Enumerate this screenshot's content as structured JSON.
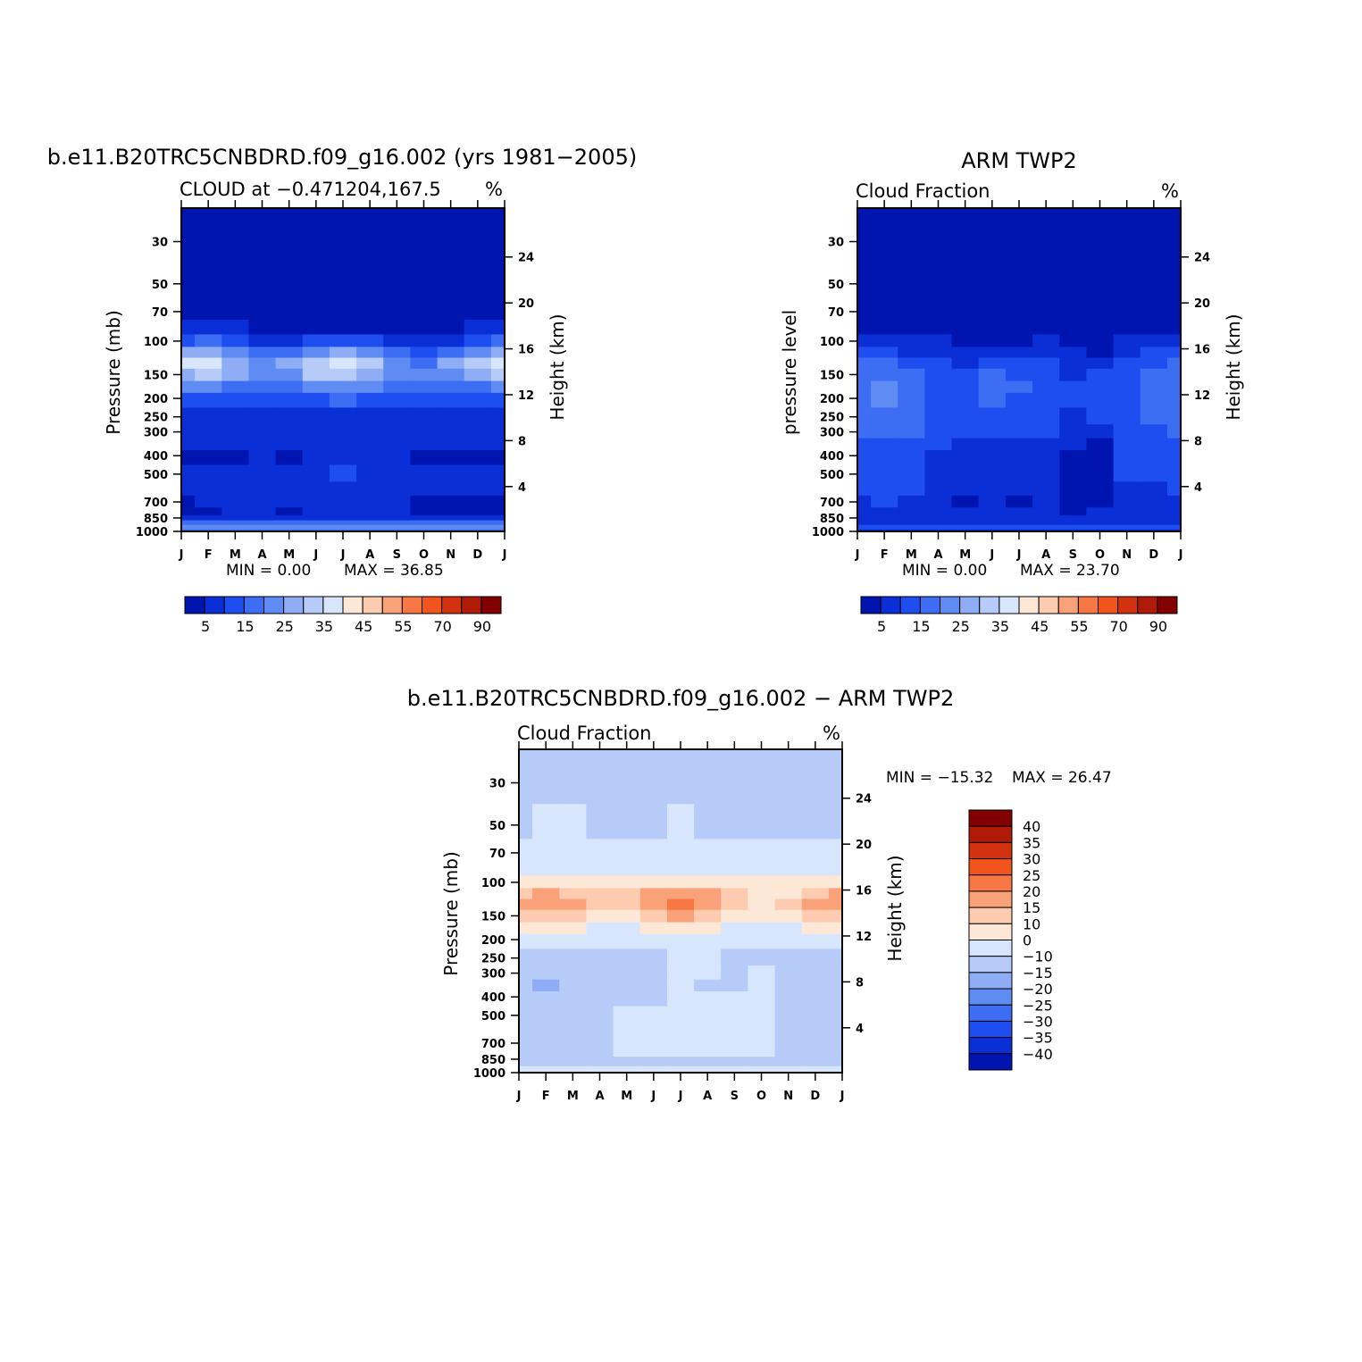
{
  "colors": {
    "seq": [
      "#00007f",
      "#0015b0",
      "#0a2fd6",
      "#1f4ef0",
      "#3c6df2",
      "#5f8cf2",
      "#8eadf5",
      "#b6cbf8",
      "#d8e6fd",
      "#fde8d8",
      "#fccbb0",
      "#f9a27a",
      "#f77845",
      "#f2541d",
      "#d33211",
      "#b01b07",
      "#830001"
    ],
    "diff": [
      "#00007f",
      "#0015b0",
      "#0a2fd6",
      "#1f4ef0",
      "#3c6df2",
      "#5f8cf2",
      "#8eadf5",
      "#b6cbf8",
      "#d8e6fd",
      "#fde8d8",
      "#fccbb0",
      "#f9a27a",
      "#f77845",
      "#f2541d",
      "#d33211",
      "#b01b07",
      "#830001"
    ]
  },
  "chart_data": [
    {
      "type": "heatmap",
      "id": "model",
      "title": "b.e11.B20TRC5CNBDRD.f09_g16.002 (yrs 1981−2005)",
      "left_label": "CLOUD at −0.471204,167.5",
      "units": "%",
      "ylabel": "Pressure (mb)",
      "y2label": "Height (km)",
      "x": [
        "J",
        "F",
        "M",
        "A",
        "M",
        "J",
        "J",
        "A",
        "S",
        "O",
        "N",
        "D",
        "J"
      ],
      "p_ticks": [
        30,
        50,
        70,
        100,
        150,
        200,
        250,
        300,
        400,
        500,
        700,
        850,
        1000
      ],
      "p_range": [
        20,
        1000
      ],
      "h_ticks": [
        4,
        8,
        12,
        16,
        20,
        24
      ],
      "min_text": "MIN =    0.00",
      "max_text": "MAX =   36.85",
      "levels": [
        0,
        5,
        10,
        15,
        20,
        25,
        30,
        35,
        40,
        45,
        50,
        55,
        60,
        70,
        80,
        90
      ],
      "cb_labels": [
        "5",
        "15",
        "25",
        "35",
        "45",
        "55",
        "70",
        "90"
      ],
      "levels_p": [
        20,
        30,
        50,
        70,
        85,
        100,
        115,
        130,
        150,
        175,
        200,
        250,
        300,
        350,
        400,
        500,
        600,
        700,
        800,
        850,
        900,
        950,
        1000
      ],
      "z": [
        [
          0,
          0,
          0,
          0,
          0,
          0,
          0,
          0,
          0,
          0,
          0,
          0,
          0
        ],
        [
          0,
          0,
          0,
          0,
          0,
          0,
          0,
          0,
          0,
          0,
          0,
          0,
          0
        ],
        [
          0,
          0,
          0,
          0,
          0,
          0,
          0,
          0,
          0,
          0,
          0,
          0,
          0
        ],
        [
          0,
          0,
          0,
          0,
          0,
          0,
          0,
          0,
          0,
          0,
          0,
          0,
          0
        ],
        [
          6,
          6,
          5,
          3,
          2,
          2,
          2,
          2,
          3,
          2,
          4,
          5,
          7
        ],
        [
          14,
          15,
          12,
          9,
          8,
          10,
          11,
          10,
          8,
          6,
          9,
          12,
          15
        ],
        [
          26,
          27,
          20,
          16,
          17,
          24,
          26,
          22,
          16,
          12,
          18,
          23,
          27
        ],
        [
          36,
          36,
          28,
          22,
          26,
          32,
          35,
          30,
          22,
          18,
          26,
          32,
          36
        ],
        [
          29,
          30,
          25,
          21,
          24,
          31,
          34,
          28,
          22,
          20,
          24,
          28,
          30
        ],
        [
          20,
          21,
          19,
          18,
          18,
          22,
          24,
          20,
          17,
          16,
          17,
          19,
          21
        ],
        [
          14,
          14,
          14,
          14,
          13,
          14,
          15,
          14,
          12,
          12,
          12,
          13,
          14
        ],
        [
          9,
          9,
          9,
          9,
          8,
          9,
          9,
          8,
          7,
          7,
          8,
          9,
          9
        ],
        [
          7,
          7,
          7,
          7,
          6,
          6,
          7,
          6,
          6,
          6,
          6,
          7,
          7
        ],
        [
          5,
          5,
          6,
          7,
          6,
          6,
          6,
          6,
          6,
          6,
          6,
          6,
          5
        ],
        [
          3,
          3,
          4,
          6,
          4,
          6,
          6,
          6,
          6,
          4,
          4,
          4,
          3
        ],
        [
          6,
          6,
          7,
          8,
          8,
          9,
          10,
          9,
          7,
          6,
          6,
          6,
          6
        ],
        [
          6,
          6,
          7,
          8,
          8,
          9,
          9,
          8,
          7,
          6,
          6,
          6,
          6
        ],
        [
          4,
          5,
          6,
          7,
          7,
          8,
          8,
          7,
          6,
          4,
          4,
          4,
          4
        ],
        [
          4,
          4,
          5,
          6,
          4,
          6,
          6,
          6,
          5,
          4,
          4,
          4,
          4
        ],
        [
          8,
          8,
          8,
          8,
          7,
          8,
          8,
          8,
          8,
          8,
          8,
          8,
          8
        ],
        [
          15,
          15,
          15,
          15,
          15,
          15,
          15,
          15,
          15,
          15,
          15,
          15,
          15
        ],
        [
          20,
          20,
          20,
          20,
          20,
          20,
          20,
          20,
          20,
          20,
          20,
          20,
          20
        ],
        [
          16,
          16,
          16,
          16,
          16,
          16,
          16,
          16,
          16,
          16,
          16,
          16,
          16
        ]
      ]
    },
    {
      "type": "heatmap",
      "id": "obs",
      "title": "ARM TWP2",
      "left_label": "Cloud Fraction",
      "units": "%",
      "ylabel": "pressure level",
      "y2label": "Height (km)",
      "x": [
        "J",
        "F",
        "M",
        "A",
        "M",
        "J",
        "J",
        "A",
        "S",
        "O",
        "N",
        "D",
        "J"
      ],
      "p_ticks": [
        30,
        50,
        70,
        100,
        150,
        200,
        250,
        300,
        400,
        500,
        700,
        850,
        1000
      ],
      "p_range": [
        20,
        1000
      ],
      "h_ticks": [
        4,
        8,
        12,
        16,
        20,
        24
      ],
      "min_text": "MIN =    0.00",
      "max_text": "MAX =   23.70",
      "levels": [
        0,
        5,
        10,
        15,
        20,
        25,
        30,
        35,
        40,
        45,
        50,
        55,
        60,
        70,
        80,
        90
      ],
      "cb_labels": [
        "5",
        "15",
        "25",
        "35",
        "45",
        "55",
        "70",
        "90"
      ],
      "levels_p": [
        20,
        30,
        50,
        70,
        85,
        100,
        115,
        130,
        150,
        175,
        200,
        250,
        300,
        350,
        400,
        500,
        600,
        700,
        800,
        850,
        900,
        950,
        1000
      ],
      "z": [
        [
          0,
          0,
          0,
          0,
          0,
          0,
          0,
          0,
          0,
          0,
          0,
          0,
          0
        ],
        [
          0,
          0,
          0,
          0,
          0,
          0,
          0,
          0,
          0,
          0,
          0,
          0,
          0
        ],
        [
          0,
          0,
          0,
          0,
          0,
          0,
          0,
          0,
          0,
          0,
          0,
          0,
          0
        ],
        [
          0,
          0,
          0,
          0,
          0,
          0,
          0,
          0,
          0,
          0,
          0,
          0,
          0
        ],
        [
          4,
          3,
          2,
          2,
          2,
          2,
          2,
          2,
          2,
          2,
          3,
          3,
          4
        ],
        [
          8,
          7,
          6,
          5,
          4,
          4,
          4,
          5,
          4,
          3,
          5,
          6,
          8
        ],
        [
          12,
          12,
          9,
          8,
          6,
          7,
          8,
          7,
          5,
          4,
          8,
          10,
          12
        ],
        [
          16,
          17,
          13,
          10,
          9,
          10,
          12,
          10,
          7,
          6,
          11,
          14,
          16
        ],
        [
          17,
          19,
          16,
          12,
          12,
          15,
          14,
          11,
          9,
          10,
          13,
          15,
          17
        ],
        [
          18,
          21,
          17,
          13,
          13,
          17,
          16,
          12,
          10,
          11,
          14,
          16,
          18
        ],
        [
          19,
          22,
          17,
          13,
          13,
          16,
          14,
          12,
          10,
          11,
          14,
          16,
          19
        ],
        [
          17,
          19,
          16,
          12,
          12,
          13,
          13,
          11,
          9,
          10,
          14,
          15,
          17
        ],
        [
          15,
          16,
          15,
          11,
          11,
          11,
          11,
          10,
          7,
          6,
          13,
          14,
          15
        ],
        [
          14,
          14,
          14,
          10,
          8,
          8,
          9,
          8,
          5,
          4,
          12,
          13,
          14
        ],
        [
          13,
          13,
          13,
          9,
          7,
          7,
          7,
          7,
          3,
          3,
          11,
          12,
          13
        ],
        [
          13,
          13,
          12,
          9,
          7,
          7,
          7,
          7,
          3,
          3,
          11,
          12,
          13
        ],
        [
          11,
          11,
          10,
          8,
          7,
          7,
          7,
          6,
          3,
          4,
          9,
          9,
          11
        ],
        [
          9,
          10,
          9,
          7,
          4,
          7,
          4,
          7,
          3,
          4,
          8,
          8,
          9
        ],
        [
          9,
          9,
          8,
          7,
          6,
          6,
          6,
          6,
          4,
          5,
          7,
          7,
          9
        ],
        [
          8,
          8,
          8,
          8,
          8,
          8,
          8,
          8,
          8,
          8,
          8,
          8,
          8
        ],
        [
          6,
          6,
          6,
          6,
          6,
          6,
          6,
          6,
          6,
          6,
          6,
          6,
          6
        ],
        [
          12,
          12,
          12,
          12,
          12,
          12,
          12,
          12,
          12,
          12,
          12,
          12,
          12
        ],
        [
          6,
          6,
          6,
          6,
          6,
          6,
          6,
          6,
          6,
          6,
          6,
          6,
          6
        ]
      ]
    },
    {
      "type": "heatmap",
      "id": "diff",
      "title": "b.e11.B20TRC5CNBDRD.f09_g16.002 − ARM TWP2",
      "left_label": "Cloud Fraction",
      "units": "%",
      "ylabel": "Pressure (mb)",
      "y2label": "Height (km)",
      "x": [
        "J",
        "F",
        "M",
        "A",
        "M",
        "J",
        "J",
        "A",
        "S",
        "O",
        "N",
        "D",
        "J"
      ],
      "p_ticks": [
        30,
        50,
        70,
        100,
        150,
        200,
        250,
        300,
        400,
        500,
        700,
        850,
        1000
      ],
      "p_range": [
        20,
        1000
      ],
      "h_ticks": [
        4,
        8,
        12,
        16,
        20,
        24
      ],
      "min_text": "MIN = −15.32",
      "max_text": "MAX =   26.47",
      "levels": [
        -40,
        -35,
        -30,
        -25,
        -20,
        -15,
        -10,
        0,
        10,
        15,
        20,
        25,
        30,
        35,
        40
      ],
      "cb_labels": [
        "40",
        "35",
        "30",
        "25",
        "20",
        "15",
        "10",
        "0",
        "−10",
        "−15",
        "−20",
        "−25",
        "−30",
        "−35",
        "−40"
      ],
      "levels_p": [
        20,
        30,
        50,
        70,
        85,
        100,
        115,
        130,
        150,
        175,
        200,
        250,
        300,
        350,
        400,
        500,
        600,
        700,
        800,
        850,
        900,
        950,
        1000
      ],
      "z": [
        [
          -2,
          -2,
          -2,
          -2,
          -2,
          -2,
          -2,
          -2,
          -2,
          -2,
          -2,
          -2,
          -2
        ],
        [
          -2,
          -2,
          -2,
          -2,
          -2,
          -2,
          -2,
          -2,
          -2,
          -2,
          -2,
          -2,
          -2
        ],
        [
          -2,
          2,
          2,
          -2,
          -2,
          -2,
          2,
          -2,
          -2,
          -2,
          -2,
          -2,
          -2
        ],
        [
          2,
          3,
          2,
          2,
          2,
          2,
          2,
          2,
          2,
          2,
          2,
          2,
          2
        ],
        [
          6,
          7,
          6,
          5,
          5,
          5,
          5,
          5,
          5,
          5,
          5,
          6,
          7
        ],
        [
          12,
          13,
          12,
          11,
          11,
          11,
          12,
          11,
          11,
          10,
          10,
          11,
          12
        ],
        [
          18,
          21,
          18,
          15,
          15,
          20,
          22,
          20,
          15,
          13,
          14,
          18,
          20
        ],
        [
          21,
          24,
          22,
          17,
          17,
          22,
          25,
          22,
          16,
          14,
          16,
          21,
          22
        ],
        [
          16,
          18,
          16,
          13,
          13,
          18,
          20,
          17,
          12,
          10,
          13,
          16,
          18
        ],
        [
          10,
          11,
          10,
          9,
          9,
          11,
          12,
          11,
          9,
          8,
          9,
          10,
          11
        ],
        [
          3,
          3,
          3,
          3,
          3,
          4,
          5,
          4,
          3,
          3,
          3,
          3,
          3
        ],
        [
          -1,
          -1,
          -1,
          -1,
          -1,
          -1,
          2,
          2,
          -1,
          -1,
          -1,
          -1,
          -1
        ],
        [
          -3,
          -8,
          -6,
          -3,
          -2,
          -2,
          2,
          2,
          -2,
          2,
          -2,
          -2,
          -3
        ],
        [
          -4,
          -11,
          -9,
          -4,
          -3,
          -2,
          2,
          -2,
          -2,
          2,
          -2,
          -2,
          -3
        ],
        [
          -3,
          -6,
          -5,
          -3,
          -3,
          -2,
          2,
          2,
          2,
          2,
          -2,
          -2,
          -2
        ],
        [
          -2,
          -2,
          -2,
          -3,
          2,
          2,
          2,
          2,
          2,
          2,
          -2,
          -2,
          -2
        ],
        [
          -2,
          -2,
          -2,
          -2,
          2,
          2,
          2,
          2,
          2,
          2,
          -2,
          -2,
          -2
        ],
        [
          -2,
          -2,
          -2,
          -2,
          2,
          2,
          2,
          2,
          2,
          2,
          -2,
          -2,
          -2
        ],
        [
          -2,
          -2,
          -2,
          -2,
          2,
          2,
          2,
          2,
          2,
          2,
          -2,
          -2,
          -2
        ],
        [
          -2,
          -2,
          -2,
          -2,
          -2,
          -2,
          -2,
          -2,
          -2,
          -2,
          -2,
          -2,
          -2
        ],
        [
          -2,
          -2,
          -2,
          -2,
          -2,
          -2,
          -2,
          -2,
          -2,
          -2,
          -2,
          -2,
          -2
        ],
        [
          2,
          2,
          2,
          2,
          2,
          2,
          2,
          2,
          2,
          2,
          2,
          2,
          2
        ],
        [
          2,
          2,
          2,
          2,
          2,
          2,
          2,
          2,
          2,
          2,
          2,
          2,
          2
        ]
      ]
    }
  ]
}
